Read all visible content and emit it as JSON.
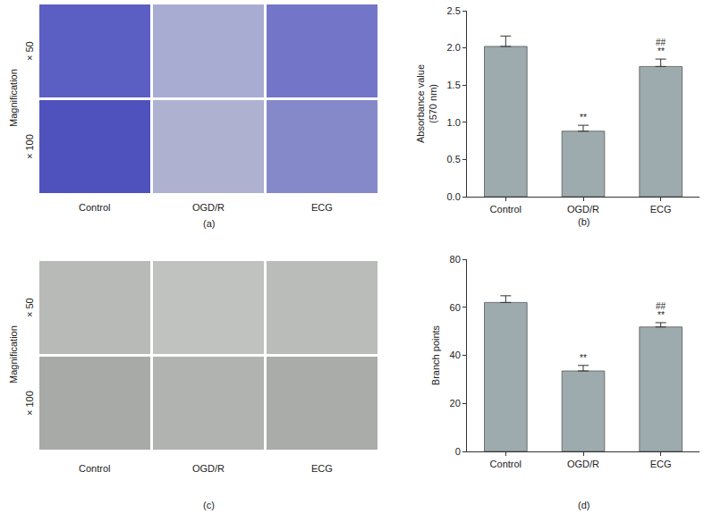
{
  "image_panels": [
    {
      "label": "(a)",
      "side_label": "Magnification",
      "row_labels": [
        "× 50",
        "× 100"
      ],
      "columns": [
        "Control",
        "OGD/R",
        "ECG"
      ]
    },
    {
      "label": "(c)",
      "side_label": "Magnification",
      "row_labels": [
        "× 50",
        "× 100"
      ],
      "columns": [
        "Control",
        "OGD/R",
        "ECG"
      ]
    }
  ],
  "chart_data": [
    {
      "type": "bar",
      "label": "(b)",
      "ylabel": "Absorbance value\n(570 nm)",
      "categories": [
        "Control",
        "OGD/R",
        "ECG"
      ],
      "values": [
        2.02,
        0.88,
        1.75
      ],
      "errors": [
        0.14,
        0.08,
        0.1
      ],
      "significance": [
        [],
        [
          "**"
        ],
        [
          "##",
          "**"
        ]
      ],
      "color": "#9eabae",
      "ylim": [
        0,
        2.5
      ],
      "yticks": [
        {
          "value": 0,
          "label": "0.0"
        },
        0.5,
        {
          "value": 1,
          "label": "1.0"
        },
        1.5,
        {
          "value": 2,
          "label": "2.0"
        },
        2.5
      ],
      "grid": false
    },
    {
      "type": "bar",
      "label": "(d)",
      "ylabel": "Branch points",
      "categories": [
        "Control",
        "OGD/R",
        "ECG"
      ],
      "values": [
        62,
        33.5,
        51.8
      ],
      "errors": [
        2.8,
        2.3,
        1.8
      ],
      "significance": [
        [],
        [
          "**"
        ],
        [
          "##",
          "**"
        ]
      ],
      "color": "#9eabae",
      "ylim": [
        0,
        80
      ],
      "yticks": [
        0,
        20,
        40,
        60,
        80
      ],
      "grid": false
    }
  ]
}
